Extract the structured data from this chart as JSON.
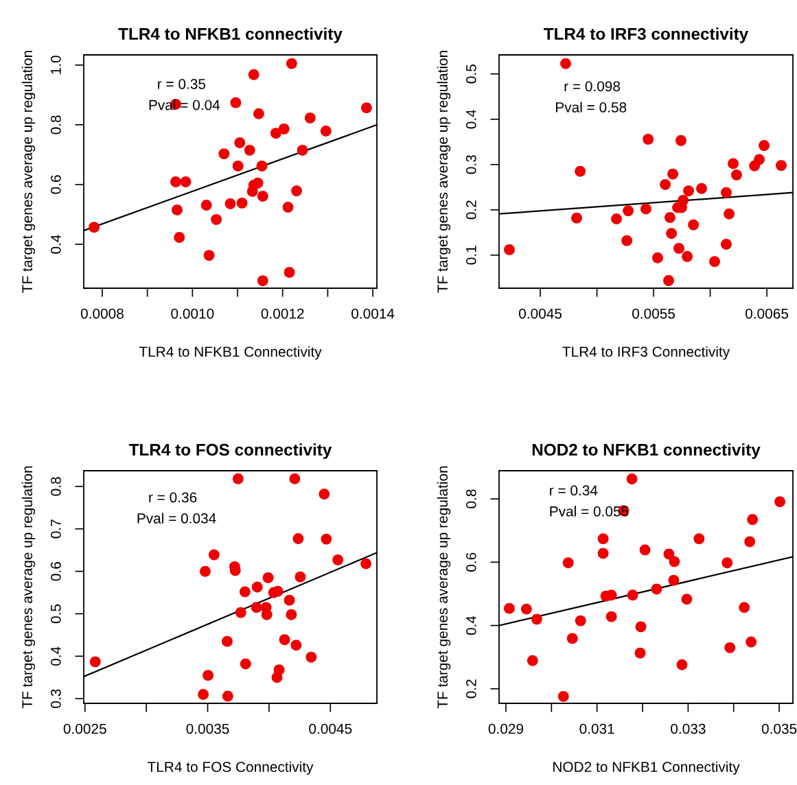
{
  "chart_data": [
    {
      "type": "scatter",
      "title": "TLR4 to NFKB1 connectivity",
      "xlabel": "TLR4 to NFKB1 Connectivity",
      "ylabel": "TF target genes average up regulation",
      "annotations": [
        "r = 0.35",
        "Pval = 0.04"
      ],
      "legend": false,
      "grid": false,
      "xlim": [
        0.000759,
        0.001409
      ],
      "ylim": [
        0.253,
        1.034
      ],
      "xticks": [
        {
          "value": 0.0008,
          "label": "0.0008"
        },
        {
          "value": 0.0009,
          "label": null
        },
        {
          "value": 0.001,
          "label": "0.0010"
        },
        {
          "value": 0.0011,
          "label": null
        },
        {
          "value": 0.0012,
          "label": "0.0012"
        },
        {
          "value": 0.0013,
          "label": null
        },
        {
          "value": 0.0014,
          "label": "0.0014"
        }
      ],
      "yticks": [
        {
          "value": 0.4,
          "label": "0.4"
        },
        {
          "value": 0.6,
          "label": "0.6"
        },
        {
          "value": 0.8,
          "label": "0.8"
        },
        {
          "value": 1.0,
          "label": "1.0"
        }
      ],
      "series": [
        {
          "marker": "circle",
          "color": "#ee0000",
          "x": [
            0.000782,
            0.000963,
            0.000963,
            0.000985,
            0.000966,
            0.000971,
            0.001031,
            0.001037,
            0.001053,
            0.00107,
            0.001084,
            0.001096,
            0.001101,
            0.001105,
            0.00111,
            0.001127,
            0.001136,
            0.001133,
            0.001136,
            0.001145,
            0.001147,
            0.001154,
            0.001156,
            0.001156,
            0.001185,
            0.001203,
            0.001212,
            0.00122,
            0.001215,
            0.001231,
            0.001244,
            0.001261,
            0.001296,
            0.001386
          ],
          "values": [
            0.457,
            0.869,
            0.609,
            0.609,
            0.515,
            0.423,
            0.531,
            0.363,
            0.483,
            0.703,
            0.536,
            0.874,
            0.662,
            0.74,
            0.538,
            0.715,
            0.968,
            0.577,
            0.598,
            0.605,
            0.837,
            0.662,
            0.561,
            0.278,
            0.772,
            0.786,
            0.524,
            1.005,
            0.306,
            0.579,
            0.715,
            0.823,
            0.779,
            0.857
          ]
        },
        {
          "type": "line",
          "color": "#000000",
          "x": [
            0.000759,
            0.001409
          ],
          "values": [
            0.446,
            0.8
          ]
        }
      ]
    },
    {
      "type": "scatter",
      "title": "TLR4 to IRF3 connectivity",
      "xlabel": "TLR4 to IRF3 Connectivity",
      "ylabel": "TF target genes average up regulation",
      "annotations": [
        "r = 0.098",
        "Pval = 0.58"
      ],
      "legend": false,
      "grid": false,
      "xlim": [
        0.004136,
        0.00673
      ],
      "ylim": [
        0.027,
        0.542
      ],
      "xticks": [
        {
          "value": 0.0045,
          "label": "0.0045"
        },
        {
          "value": 0.005,
          "label": null
        },
        {
          "value": 0.0055,
          "label": "0.0055"
        },
        {
          "value": 0.006,
          "label": null
        },
        {
          "value": 0.0065,
          "label": "0.0065"
        }
      ],
      "yticks": [
        {
          "value": 0.1,
          "label": "0.1"
        },
        {
          "value": 0.2,
          "label": "0.2"
        },
        {
          "value": 0.3,
          "label": "0.3"
        },
        {
          "value": 0.4,
          "label": "0.4"
        },
        {
          "value": 0.5,
          "label": "0.5"
        }
      ],
      "series": [
        {
          "marker": "circle",
          "color": "#ee0000",
          "x": [
            0.004227,
            0.004724,
            0.004852,
            0.004821,
            0.005173,
            0.005264,
            0.005276,
            0.005433,
            0.005452,
            0.005536,
            0.005603,
            0.005633,
            0.005645,
            0.005658,
            0.00567,
            0.005712,
            0.005724,
            0.005742,
            0.005748,
            0.005761,
            0.005797,
            0.005809,
            0.005852,
            0.005924,
            0.006039,
            0.006142,
            0.006142,
            0.006167,
            0.006203,
            0.006233,
            0.006391,
            0.006433,
            0.006476,
            0.006627
          ],
          "values": [
            0.112,
            0.523,
            0.285,
            0.182,
            0.18,
            0.132,
            0.198,
            0.202,
            0.356,
            0.094,
            0.256,
            0.044,
            0.183,
            0.148,
            0.279,
            0.205,
            0.115,
            0.353,
            0.205,
            0.221,
            0.097,
            0.242,
            0.167,
            0.247,
            0.086,
            0.238,
            0.124,
            0.191,
            0.302,
            0.277,
            0.297,
            0.311,
            0.342,
            0.298
          ]
        },
        {
          "type": "line",
          "color": "#000000",
          "x": [
            0.004136,
            0.00673
          ],
          "values": [
            0.191,
            0.238
          ]
        }
      ]
    },
    {
      "type": "scatter",
      "title": "TLR4 to FOS connectivity",
      "xlabel": "TLR4 to FOS Connectivity",
      "ylabel": "TF target genes average up regulation",
      "annotations": [
        "r = 0.36",
        "Pval = 0.034"
      ],
      "legend": false,
      "grid": false,
      "xlim": [
        0.00249,
        0.004879
      ],
      "ylim": [
        0.289,
        0.837
      ],
      "xticks": [
        {
          "value": 0.0025,
          "label": "0.0025"
        },
        {
          "value": 0.003,
          "label": null
        },
        {
          "value": 0.0035,
          "label": "0.0035"
        },
        {
          "value": 0.004,
          "label": null
        },
        {
          "value": 0.0045,
          "label": "0.0045"
        }
      ],
      "yticks": [
        {
          "value": 0.3,
          "label": "0.3"
        },
        {
          "value": 0.4,
          "label": "0.4"
        },
        {
          "value": 0.5,
          "label": "0.5"
        },
        {
          "value": 0.6,
          "label": "0.6"
        },
        {
          "value": 0.7,
          "label": "0.7"
        },
        {
          "value": 0.8,
          "label": "0.8"
        }
      ],
      "series": [
        {
          "marker": "circle",
          "color": "#ee0000",
          "x": [
            0.002584,
            0.003464,
            0.00348,
            0.003503,
            0.003552,
            0.003659,
            0.003664,
            0.00372,
            0.003725,
            0.003748,
            0.00377,
            0.003804,
            0.003809,
            0.003904,
            0.003898,
            0.003976,
            0.003982,
            0.003993,
            0.004038,
            0.004071,
            0.004065,
            0.004082,
            0.004127,
            0.004166,
            0.004182,
            0.00421,
            0.004221,
            0.004238,
            0.004255,
            0.004344,
            0.00445,
            0.004467,
            0.004561,
            0.00479
          ],
          "values": [
            0.387,
            0.31,
            0.6,
            0.355,
            0.639,
            0.435,
            0.306,
            0.611,
            0.602,
            0.818,
            0.503,
            0.552,
            0.382,
            0.563,
            0.515,
            0.515,
            0.498,
            0.585,
            0.55,
            0.553,
            0.35,
            0.368,
            0.439,
            0.532,
            0.498,
            0.818,
            0.426,
            0.677,
            0.587,
            0.398,
            0.782,
            0.676,
            0.627,
            0.618
          ]
        },
        {
          "type": "line",
          "color": "#000000",
          "x": [
            0.00249,
            0.004879
          ],
          "values": [
            0.352,
            0.644
          ]
        }
      ]
    },
    {
      "type": "scatter",
      "title": "NOD2 to NFKB1 connectivity",
      "xlabel": "NOD2 to NFKB1 Connectivity",
      "ylabel": "TF target genes average up regulation",
      "annotations": [
        "r = 0.34",
        "Pval = 0.055"
      ],
      "legend": false,
      "grid": false,
      "xlim": [
        0.02885,
        0.0353
      ],
      "ylim": [
        0.154,
        0.889
      ],
      "xticks": [
        {
          "value": 0.029,
          "label": "0.029"
        },
        {
          "value": 0.03,
          "label": null
        },
        {
          "value": 0.031,
          "label": "0.031"
        },
        {
          "value": 0.032,
          "label": null
        },
        {
          "value": 0.033,
          "label": "0.033"
        },
        {
          "value": 0.034,
          "label": null
        },
        {
          "value": 0.035,
          "label": "0.035"
        }
      ],
      "yticks": [
        {
          "value": 0.2,
          "label": "0.2"
        },
        {
          "value": 0.4,
          "label": "0.4"
        },
        {
          "value": 0.6,
          "label": "0.6"
        },
        {
          "value": 0.8,
          "label": "0.8"
        }
      ],
      "series": [
        {
          "marker": "circle",
          "color": "#ee0000",
          "x": [
            0.029075,
            0.029451,
            0.029677,
            0.029586,
            0.030263,
            0.030368,
            0.030459,
            0.030639,
            0.031135,
            0.031135,
            0.031195,
            0.031316,
            0.031316,
            0.031586,
            0.031767,
            0.031782,
            0.031962,
            0.031947,
            0.032053,
            0.032308,
            0.032579,
            0.032699,
            0.032684,
            0.032865,
            0.03297,
            0.033241,
            0.033857,
            0.034233,
            0.033917,
            0.034353,
            0.034414,
            0.034383,
            0.035015
          ],
          "values": [
            0.454,
            0.452,
            0.42,
            0.289,
            0.176,
            0.598,
            0.359,
            0.415,
            0.674,
            0.628,
            0.493,
            0.496,
            0.428,
            0.763,
            0.863,
            0.496,
            0.396,
            0.313,
            0.639,
            0.515,
            0.626,
            0.602,
            0.543,
            0.276,
            0.483,
            0.674,
            0.598,
            0.457,
            0.33,
            0.665,
            0.735,
            0.348,
            0.791
          ]
        },
        {
          "type": "line",
          "color": "#000000",
          "x": [
            0.02885,
            0.0353
          ],
          "values": [
            0.4,
            0.617
          ]
        }
      ]
    }
  ]
}
